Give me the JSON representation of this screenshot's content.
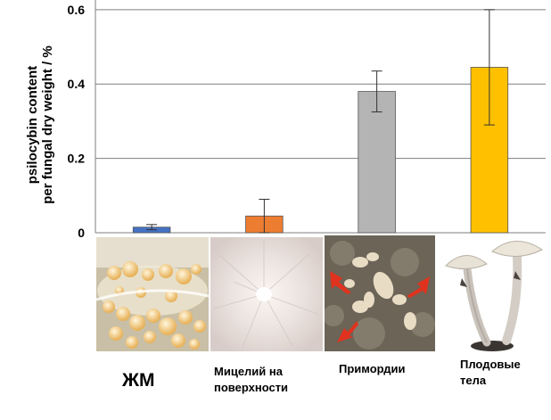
{
  "chart_data": {
    "type": "bar",
    "title": "",
    "xlabel": "",
    "ylabel_line1": "psilocybin content",
    "ylabel_line2": "per fungal dry weight / %",
    "ylim": [
      0,
      0.65
    ],
    "yticks": [
      0,
      0.2,
      0.4,
      0.6
    ],
    "ytick_labels": [
      "0",
      "0.2",
      "0.4",
      "0.6"
    ],
    "grid": true,
    "categories": [
      "ЖМ",
      "Мицелий на поверхности",
      "Примордии",
      "Плодовые тела"
    ],
    "values": [
      0.015,
      0.045,
      0.38,
      0.445
    ],
    "errors": [
      0.007,
      0.045,
      0.055,
      0.155
    ],
    "colors": [
      "#4472c4",
      "#ed7d31",
      "#b4b4b4",
      "#ffc000"
    ]
  },
  "captions": {
    "c1": "ЖМ",
    "c2_line1": "Мицелий на",
    "c2_line2": "поверхности",
    "c3": "Примордии",
    "c4_line1": "Плодовые",
    "c4_line2": "тела"
  }
}
